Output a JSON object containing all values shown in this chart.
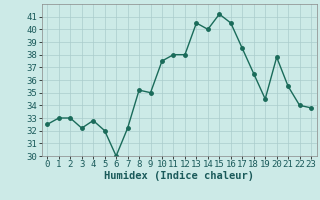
{
  "x": [
    0,
    1,
    2,
    3,
    4,
    5,
    6,
    7,
    8,
    9,
    10,
    11,
    12,
    13,
    14,
    15,
    16,
    17,
    18,
    19,
    20,
    21,
    22,
    23
  ],
  "y": [
    32.5,
    33.0,
    33.0,
    32.2,
    32.8,
    32.0,
    30.0,
    32.2,
    35.2,
    35.0,
    37.5,
    38.0,
    38.0,
    40.5,
    40.0,
    41.2,
    40.5,
    38.5,
    36.5,
    34.5,
    37.8,
    35.5,
    34.0,
    33.8
  ],
  "line_color": "#1a6b5a",
  "marker": "o",
  "marker_size": 2.5,
  "line_width": 1.0,
  "bg_color": "#cceae7",
  "grid_color": "#aacccc",
  "xlabel": "Humidex (Indice chaleur)",
  "xlabel_fontsize": 7.5,
  "tick_fontsize": 6.5,
  "ylim": [
    30,
    42
  ],
  "yticks": [
    30,
    31,
    32,
    33,
    34,
    35,
    36,
    37,
    38,
    39,
    40,
    41
  ],
  "xlim": [
    -0.5,
    23.5
  ],
  "xticks": [
    0,
    1,
    2,
    3,
    4,
    5,
    6,
    7,
    8,
    9,
    10,
    11,
    12,
    13,
    14,
    15,
    16,
    17,
    18,
    19,
    20,
    21,
    22,
    23
  ]
}
